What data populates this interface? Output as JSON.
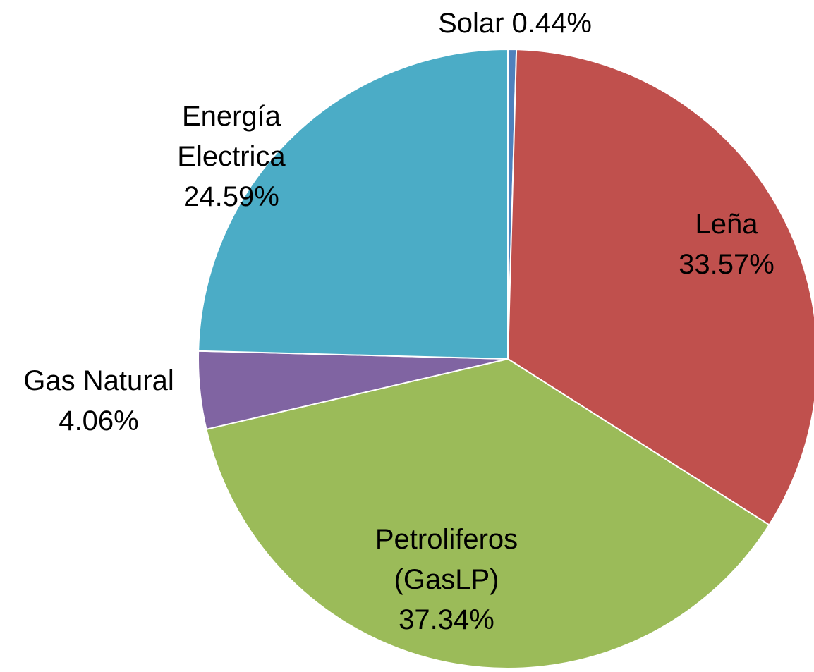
{
  "chart_data": {
    "type": "pie",
    "categories": [
      "Solar",
      "Leña",
      "Petroliferos (GasLP)",
      "Gas Natural",
      "Energía Electrica"
    ],
    "values": [
      0.44,
      33.57,
      37.34,
      4.06,
      24.59
    ],
    "value_labels": [
      "0.44%",
      "33.57%",
      "37.34%",
      "4.06%",
      "24.59%"
    ],
    "colors": [
      "#4f81bd",
      "#c0504d",
      "#9bbb59",
      "#8064a2",
      "#4bacc6"
    ]
  }
}
